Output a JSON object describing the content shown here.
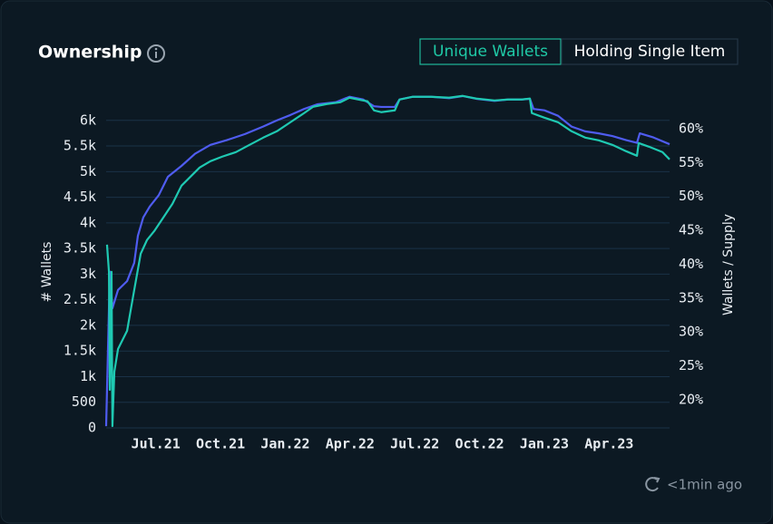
{
  "header": {
    "title": "Ownership",
    "toggles": [
      "Unique Wallets",
      "Holding Single Item"
    ],
    "active_toggle": 0
  },
  "chart_data": {
    "type": "line",
    "y_label": "# Wallets",
    "y2_label": "Wallets / Supply",
    "xlim": [
      3.7,
      29.8
    ],
    "xticks": [
      {
        "value": 6,
        "label": "Jul.21"
      },
      {
        "value": 9,
        "label": "Oct.21"
      },
      {
        "value": 12,
        "label": "Jan.22"
      },
      {
        "value": 15,
        "label": "Apr.22"
      },
      {
        "value": 18,
        "label": "Jul.22"
      },
      {
        "value": 21,
        "label": "Oct.22"
      },
      {
        "value": 24,
        "label": "Jan.23"
      },
      {
        "value": 27,
        "label": "Apr.23"
      }
    ],
    "ylim": [
      0,
      6580
    ],
    "yticks": [
      0,
      500,
      {
        "value": 1000,
        "label": "1k"
      },
      {
        "value": 1500,
        "label": "1.5k"
      },
      {
        "value": 2000,
        "label": "2k"
      },
      {
        "value": 2500,
        "label": "2.5k"
      },
      {
        "value": 3000,
        "label": "3k"
      },
      {
        "value": 3500,
        "label": "3.5k"
      },
      {
        "value": 4000,
        "label": "4k"
      },
      {
        "value": 4500,
        "label": "4.5k"
      },
      {
        "value": 5000,
        "label": "5k"
      },
      {
        "value": 5500,
        "label": "5.5k"
      },
      {
        "value": 6000,
        "label": "6k"
      }
    ],
    "y2lim": [
      15.85,
      65.6
    ],
    "y2ticks": [
      {
        "value": 20,
        "label": "20%"
      },
      {
        "value": 25,
        "label": "25%"
      },
      {
        "value": 30,
        "label": "30%"
      },
      {
        "value": 35,
        "label": "35%"
      },
      {
        "value": 40,
        "label": "40%"
      },
      {
        "value": 45,
        "label": "45%"
      },
      {
        "value": 50,
        "label": "50%"
      },
      {
        "value": 55,
        "label": "55%"
      },
      {
        "value": 60,
        "label": "60%"
      }
    ],
    "grid": true,
    "series": [
      {
        "color": "#4f5cf0",
        "axis": "y2",
        "x": [
          3.7,
          3.87,
          3.99,
          4.25,
          4.67,
          5.0,
          5.17,
          5.42,
          5.72,
          6.14,
          6.56,
          7.19,
          7.82,
          8.53,
          9.29,
          10.13,
          10.97,
          11.6,
          12.23,
          12.87,
          13.5,
          14.34,
          14.97,
          15.6,
          16.11,
          16.44,
          17.07,
          17.29,
          17.91,
          18.75,
          19.59,
          20.22,
          20.85,
          21.69,
          22.32,
          22.95,
          23.33,
          23.5,
          24.0,
          24.63,
          25.26,
          25.89,
          26.52,
          27.15,
          27.79,
          28.29,
          28.42,
          29.05,
          29.8
        ],
        "values": [
          16.1,
          38.9,
          33.5,
          36.2,
          37.5,
          40.2,
          44.2,
          46.9,
          48.5,
          50.2,
          52.9,
          54.5,
          56.3,
          57.6,
          58.3,
          59.2,
          60.3,
          61.2,
          62.0,
          62.9,
          63.6,
          63.9,
          64.7,
          64.3,
          63.3,
          63.2,
          63.2,
          64.3,
          64.7,
          64.7,
          64.5,
          64.8,
          64.4,
          64.1,
          64.3,
          64.3,
          64.4,
          62.9,
          62.7,
          61.9,
          60.3,
          59.6,
          59.3,
          58.9,
          58.3,
          57.9,
          59.3,
          58.7,
          57.7
        ]
      },
      {
        "color": "#1fc9b2",
        "x": [
          3.74,
          3.83,
          3.87,
          3.95,
          3.99,
          4.08,
          4.25,
          4.67,
          5.0,
          5.3,
          5.59,
          5.93,
          6.35,
          6.77,
          7.19,
          7.61,
          8.03,
          8.53,
          9.08,
          9.71,
          10.34,
          10.98,
          11.61,
          12.24,
          12.87,
          13.29,
          13.92,
          14.55,
          14.97,
          15.39,
          15.81,
          16.11,
          16.44,
          17.07,
          17.29,
          17.91,
          18.75,
          19.59,
          20.22,
          20.85,
          21.69,
          22.32,
          22.95,
          23.33,
          23.42,
          24.0,
          24.63,
          25.26,
          25.89,
          26.52,
          27.15,
          27.79,
          28.29,
          28.37,
          28.84,
          29.47,
          29.8
        ],
        "values": [
          3575,
          3045,
          743,
          3045,
          35,
          1097,
          1540,
          1894,
          2690,
          3398,
          3664,
          3841,
          4106,
          4372,
          4726,
          4903,
          5080,
          5204,
          5293,
          5381,
          5522,
          5664,
          5788,
          5965,
          6142,
          6266,
          6319,
          6354,
          6443,
          6407,
          6372,
          6195,
          6160,
          6195,
          6407,
          6461,
          6461,
          6443,
          6478,
          6425,
          6389,
          6407,
          6407,
          6425,
          6142,
          6053,
          5965,
          5788,
          5664,
          5611,
          5522,
          5398,
          5310,
          5558,
          5487,
          5381,
          5239
        ]
      }
    ]
  },
  "footer": {
    "updated": "<1min ago"
  }
}
